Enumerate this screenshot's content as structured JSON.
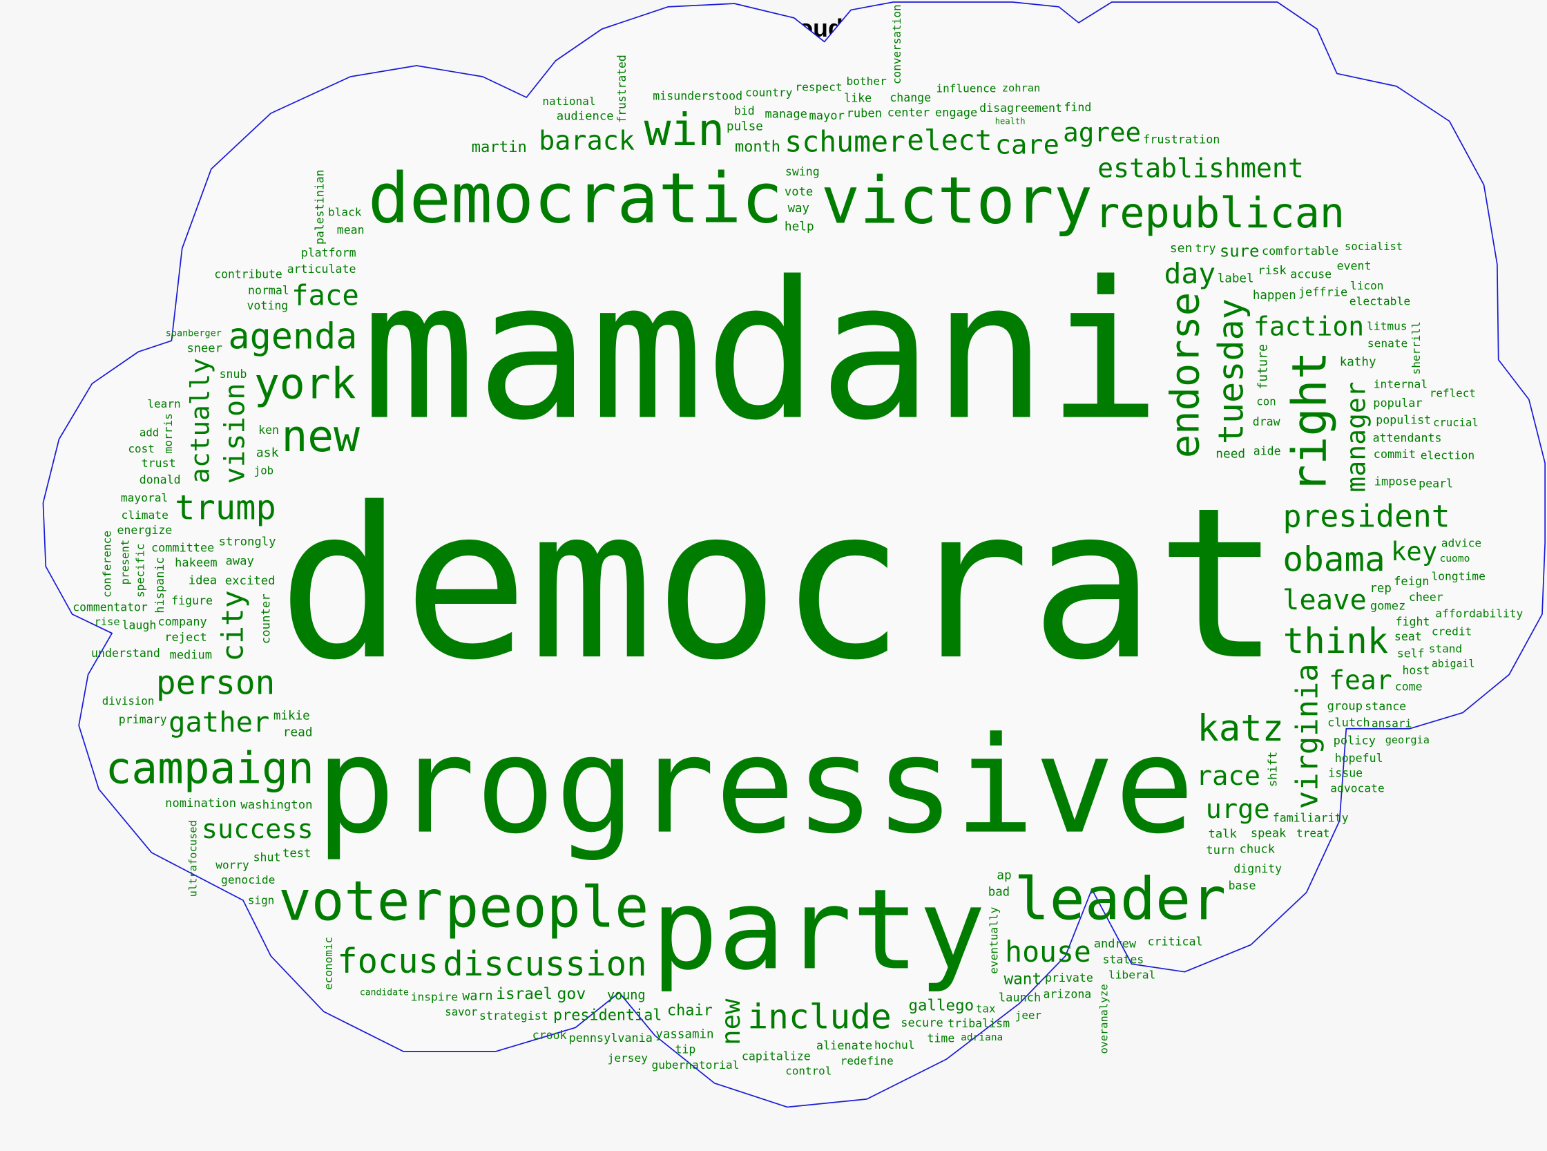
{
  "chart_data": {
    "type": "wordcloud",
    "title": "Word Cloud",
    "shape": "cloud",
    "colors": {
      "words": "#008000",
      "outline": "#0000ff",
      "background": "#f7f7f7"
    },
    "words": [
      {
        "text": "democrat",
        "weight": 1.0
      },
      {
        "text": "mamdani",
        "weight": 0.92
      },
      {
        "text": "progressive",
        "weight": 0.66
      },
      {
        "text": "party",
        "weight": 0.56
      },
      {
        "text": "democratic",
        "weight": 0.34
      },
      {
        "text": "victory",
        "weight": 0.32
      },
      {
        "text": "republican",
        "weight": 0.2
      },
      {
        "text": "schumer",
        "weight": 0.15
      },
      {
        "text": "win",
        "weight": 0.22
      },
      {
        "text": "elect",
        "weight": 0.14
      },
      {
        "text": "agree",
        "weight": 0.13
      },
      {
        "text": "establishment",
        "weight": 0.13
      },
      {
        "text": "barack",
        "weight": 0.13
      },
      {
        "text": "face",
        "weight": 0.14
      },
      {
        "text": "martin",
        "weight": 0.07
      },
      {
        "text": "mean",
        "weight": 0.05
      },
      {
        "text": "misunderstood",
        "weight": 0.05
      },
      {
        "text": "national",
        "weight": 0.05
      },
      {
        "text": "country",
        "weight": 0.05
      },
      {
        "text": "audience",
        "weight": 0.05
      },
      {
        "text": "help",
        "weight": 0.05
      },
      {
        "text": "pulse",
        "weight": 0.05
      },
      {
        "text": "like",
        "weight": 0.05
      },
      {
        "text": "manage",
        "weight": 0.05
      },
      {
        "text": "find",
        "weight": 0.05
      },
      {
        "text": "sure",
        "weight": 0.08
      },
      {
        "text": "frustration",
        "weight": 0.05
      },
      {
        "text": "month",
        "weight": 0.08
      },
      {
        "text": "center",
        "weight": 0.05
      },
      {
        "text": "change",
        "weight": 0.05
      },
      {
        "text": "health",
        "weight": 0.05
      },
      {
        "text": "bid",
        "weight": 0.05
      },
      {
        "text": "way",
        "weight": 0.05
      },
      {
        "text": "risk",
        "weight": 0.06
      },
      {
        "text": "jeffrie",
        "weight": 0.05
      },
      {
        "text": "mayor",
        "weight": 0.05
      },
      {
        "text": "ruben",
        "weight": 0.05
      },
      {
        "text": "engage",
        "weight": 0.05
      },
      {
        "text": "disagreement",
        "weight": 0.05
      },
      {
        "text": "sen",
        "weight": 0.05
      },
      {
        "text": "event",
        "weight": 0.05
      },
      {
        "text": "socialist",
        "weight": 0.06
      },
      {
        "text": "comfortable",
        "weight": 0.05
      },
      {
        "text": "electable",
        "weight": 0.05
      },
      {
        "text": "licon",
        "weight": 0.05
      },
      {
        "text": "day",
        "weight": 0.13
      },
      {
        "text": "litmus",
        "weight": 0.05
      },
      {
        "text": "influence",
        "weight": 0.05
      },
      {
        "text": "bother",
        "weight": 0.05
      },
      {
        "text": "vote",
        "weight": 0.05
      },
      {
        "text": "try",
        "weight": 0.05
      },
      {
        "text": "voting",
        "weight": 0.05
      },
      {
        "text": "black",
        "weight": 0.05
      },
      {
        "text": "normal",
        "weight": 0.05
      },
      {
        "text": "ken",
        "weight": 0.05
      },
      {
        "text": "sneer",
        "weight": 0.05
      },
      {
        "text": "ask",
        "weight": 0.05
      },
      {
        "text": "donald",
        "weight": 0.05
      },
      {
        "text": "trust",
        "weight": 0.05
      },
      {
        "text": "cost",
        "weight": 0.05
      },
      {
        "text": "trump",
        "weight": 0.16
      },
      {
        "text": "strongly",
        "weight": 0.05
      },
      {
        "text": "climate",
        "weight": 0.05
      },
      {
        "text": "figure",
        "weight": 0.05
      },
      {
        "text": "away",
        "weight": 0.05
      },
      {
        "text": "rise",
        "weight": 0.05
      },
      {
        "text": "energize",
        "weight": 0.05
      },
      {
        "text": "idea",
        "weight": 0.05
      },
      {
        "text": "laugh",
        "weight": 0.05
      },
      {
        "text": "need",
        "weight": 0.05
      },
      {
        "text": "senate",
        "weight": 0.05
      },
      {
        "text": "kathy",
        "weight": 0.05
      },
      {
        "text": "popular",
        "weight": 0.05
      },
      {
        "text": "crucial",
        "weight": 0.05
      },
      {
        "text": "accuse",
        "weight": 0.05
      },
      {
        "text": "reflect",
        "weight": 0.05
      },
      {
        "text": "happen",
        "weight": 0.05
      },
      {
        "text": "commit",
        "weight": 0.05
      },
      {
        "text": "con",
        "weight": 0.05
      },
      {
        "text": "label",
        "weight": 0.05
      },
      {
        "text": "zohran",
        "weight": 0.05
      },
      {
        "text": "president",
        "weight": 0.15
      },
      {
        "text": "populist",
        "weight": 0.05
      },
      {
        "text": "pearl",
        "weight": 0.05
      },
      {
        "text": "internal",
        "weight": 0.05
      },
      {
        "text": "attendants",
        "weight": 0.05
      },
      {
        "text": "election",
        "weight": 0.05
      },
      {
        "text": "impose",
        "weight": 0.05
      },
      {
        "text": "cheer",
        "weight": 0.05
      },
      {
        "text": "cuomo",
        "weight": 0.05
      },
      {
        "text": "gomez",
        "weight": 0.05
      },
      {
        "text": "key",
        "weight": 0.14
      },
      {
        "text": "aide",
        "weight": 0.05
      },
      {
        "text": "longtime",
        "weight": 0.05
      },
      {
        "text": "leave",
        "weight": 0.14
      },
      {
        "text": "advice",
        "weight": 0.05
      },
      {
        "text": "obama",
        "weight": 0.16
      },
      {
        "text": "ansari",
        "weight": 0.05
      },
      {
        "text": "clutch",
        "weight": 0.05
      },
      {
        "text": "seat",
        "weight": 0.05
      },
      {
        "text": "affordability",
        "weight": 0.05
      },
      {
        "text": "self",
        "weight": 0.05
      },
      {
        "text": "draw",
        "weight": 0.05
      },
      {
        "text": "fight",
        "weight": 0.05
      },
      {
        "text": "feign",
        "weight": 0.05
      },
      {
        "text": "stand",
        "weight": 0.05
      },
      {
        "text": "rep",
        "weight": 0.05
      },
      {
        "text": "stance",
        "weight": 0.05
      },
      {
        "text": "abigail",
        "weight": 0.05
      },
      {
        "text": "group",
        "weight": 0.05
      },
      {
        "text": "host",
        "weight": 0.05
      },
      {
        "text": "credit",
        "weight": 0.05
      },
      {
        "text": "fear",
        "weight": 0.14
      },
      {
        "text": "think",
        "weight": 0.17
      },
      {
        "text": "hopeful",
        "weight": 0.05
      },
      {
        "text": "issue",
        "weight": 0.05
      },
      {
        "text": "katz",
        "weight": 0.17
      },
      {
        "text": "georgia",
        "weight": 0.05
      },
      {
        "text": "treat",
        "weight": 0.05
      },
      {
        "text": "familiarity",
        "weight": 0.05
      },
      {
        "text": "speak",
        "weight": 0.05
      },
      {
        "text": "chuck",
        "weight": 0.05
      },
      {
        "text": "talk",
        "weight": 0.05
      },
      {
        "text": "leader",
        "weight": 0.29
      },
      {
        "text": "states",
        "weight": 0.05
      },
      {
        "text": "critical",
        "weight": 0.05
      },
      {
        "text": "race",
        "weight": 0.14
      },
      {
        "text": "house",
        "weight": 0.14
      },
      {
        "text": "private",
        "weight": 0.05
      },
      {
        "text": "dignity",
        "weight": 0.05
      },
      {
        "text": "ap",
        "weight": 0.05
      },
      {
        "text": "arizona",
        "weight": 0.05
      },
      {
        "text": "gallego",
        "weight": 0.09
      },
      {
        "text": "time",
        "weight": 0.05
      },
      {
        "text": "hochul",
        "weight": 0.05
      },
      {
        "text": "launch",
        "weight": 0.05
      },
      {
        "text": "jeer",
        "weight": 0.05
      },
      {
        "text": "tribalism",
        "weight": 0.05
      },
      {
        "text": "adriana",
        "weight": 0.05
      },
      {
        "text": "control",
        "weight": 0.05
      },
      {
        "text": "want",
        "weight": 0.08
      },
      {
        "text": "andrew",
        "weight": 0.05
      },
      {
        "text": "bad",
        "weight": 0.05
      },
      {
        "text": "tax",
        "weight": 0.05
      },
      {
        "text": "presidential",
        "weight": 0.09
      },
      {
        "text": "base",
        "weight": 0.05
      },
      {
        "text": "gubernatorial",
        "weight": 0.05
      },
      {
        "text": "crook",
        "weight": 0.05
      },
      {
        "text": "read",
        "weight": 0.05
      },
      {
        "text": "inspire",
        "weight": 0.05
      },
      {
        "text": "candidate",
        "weight": 0.05
      },
      {
        "text": "washington",
        "weight": 0.05
      },
      {
        "text": "chair",
        "weight": 0.09
      },
      {
        "text": "pennsylvania",
        "weight": 0.05
      },
      {
        "text": "jersey",
        "weight": 0.05
      },
      {
        "text": "tip",
        "weight": 0.05
      },
      {
        "text": "people",
        "weight": 0.28
      },
      {
        "text": "yassamin",
        "weight": 0.05
      },
      {
        "text": "alienate",
        "weight": 0.05
      },
      {
        "text": "include",
        "weight": 0.17
      },
      {
        "text": "capitalize",
        "weight": 0.05
      },
      {
        "text": "redefine",
        "weight": 0.05
      },
      {
        "text": "voter",
        "weight": 0.27
      },
      {
        "text": "focus",
        "weight": 0.17
      },
      {
        "text": "young",
        "weight": 0.05
      },
      {
        "text": "savor",
        "weight": 0.05
      },
      {
        "text": "warn",
        "weight": 0.05
      },
      {
        "text": "strategist",
        "weight": 0.05
      },
      {
        "text": "success",
        "weight": 0.13
      },
      {
        "text": "worry",
        "weight": 0.05
      },
      {
        "text": "israel",
        "weight": 0.09
      },
      {
        "text": "gov",
        "weight": 0.08
      },
      {
        "text": "campaign",
        "weight": 0.22
      },
      {
        "text": "test",
        "weight": 0.05
      },
      {
        "text": "nomination",
        "weight": 0.05
      },
      {
        "text": "sign",
        "weight": 0.05
      },
      {
        "text": "genocide",
        "weight": 0.05
      },
      {
        "text": "medium",
        "weight": 0.05
      },
      {
        "text": "mikie",
        "weight": 0.05
      },
      {
        "text": "understand",
        "weight": 0.05
      },
      {
        "text": "division",
        "weight": 0.05
      },
      {
        "text": "committee",
        "weight": 0.05
      },
      {
        "text": "reject",
        "weight": 0.05
      },
      {
        "text": "company",
        "weight": 0.05
      },
      {
        "text": "person",
        "weight": 0.16
      },
      {
        "text": "primary",
        "weight": 0.05
      },
      {
        "text": "gather",
        "weight": 0.14
      },
      {
        "text": "discussion",
        "weight": 0.17
      },
      {
        "text": "liberal",
        "weight": 0.05
      },
      {
        "text": "secure",
        "weight": 0.05
      },
      {
        "text": "job",
        "weight": 0.05
      },
      {
        "text": "commentator",
        "weight": 0.05
      },
      {
        "text": "excited",
        "weight": 0.05
      },
      {
        "text": "mayoral",
        "weight": 0.05
      },
      {
        "text": "hakeem",
        "weight": 0.05
      },
      {
        "text": "shut",
        "weight": 0.05
      },
      {
        "text": "platform",
        "weight": 0.05
      },
      {
        "text": "swing",
        "weight": 0.05
      },
      {
        "text": "urge",
        "weight": 0.14
      },
      {
        "text": "advocate",
        "weight": 0.05
      },
      {
        "text": "come",
        "weight": 0.05
      },
      {
        "text": "policy",
        "weight": 0.05
      },
      {
        "text": "turn",
        "weight": 0.05
      },
      {
        "text": "faction",
        "weight": 0.14
      },
      {
        "text": "care",
        "weight": 0.13
      },
      {
        "text": "articulate",
        "weight": 0.05
      },
      {
        "text": "respect",
        "weight": 0.05
      },
      {
        "text": "contribute",
        "weight": 0.05
      },
      {
        "text": "snub",
        "weight": 0.05
      },
      {
        "text": "learn",
        "weight": 0.05
      },
      {
        "text": "add",
        "weight": 0.05
      },
      {
        "text": "spanberger",
        "weight": 0.05
      },
      {
        "text": "agenda",
        "weight": 0.16
      },
      {
        "text": "new",
        "weight": 0.16
      },
      {
        "text": "york",
        "weight": 0.18
      },
      {
        "text": "right",
        "weight": 0.22
      },
      {
        "text": "endorse",
        "weight": 0.19
      },
      {
        "text": "tuesday",
        "weight": 0.17
      },
      {
        "text": "virginia",
        "weight": 0.15
      },
      {
        "text": "manager",
        "weight": 0.13
      },
      {
        "text": "actually",
        "weight": 0.13
      },
      {
        "text": "vision",
        "weight": 0.14
      },
      {
        "text": "city",
        "weight": 0.15
      },
      {
        "text": "new",
        "weight": 0.13
      },
      {
        "text": "counter",
        "weight": 0.05
      },
      {
        "text": "conference",
        "weight": 0.05
      },
      {
        "text": "specific",
        "weight": 0.05
      },
      {
        "text": "hispanic",
        "weight": 0.05
      },
      {
        "text": "present",
        "weight": 0.05
      },
      {
        "text": "morris",
        "weight": 0.05
      },
      {
        "text": "palestinian",
        "weight": 0.05
      },
      {
        "text": "frustrated",
        "weight": 0.05
      },
      {
        "text": "conversation",
        "weight": 0.05
      },
      {
        "text": "future",
        "weight": 0.05
      },
      {
        "text": "sherrill",
        "weight": 0.05
      },
      {
        "text": "eventually",
        "weight": 0.05
      },
      {
        "text": "economic",
        "weight": 0.05
      },
      {
        "text": "ultrafocused",
        "weight": 0.05
      },
      {
        "text": "overanalyze",
        "weight": 0.05
      },
      {
        "text": "shift",
        "weight": 0.05
      }
    ]
  }
}
